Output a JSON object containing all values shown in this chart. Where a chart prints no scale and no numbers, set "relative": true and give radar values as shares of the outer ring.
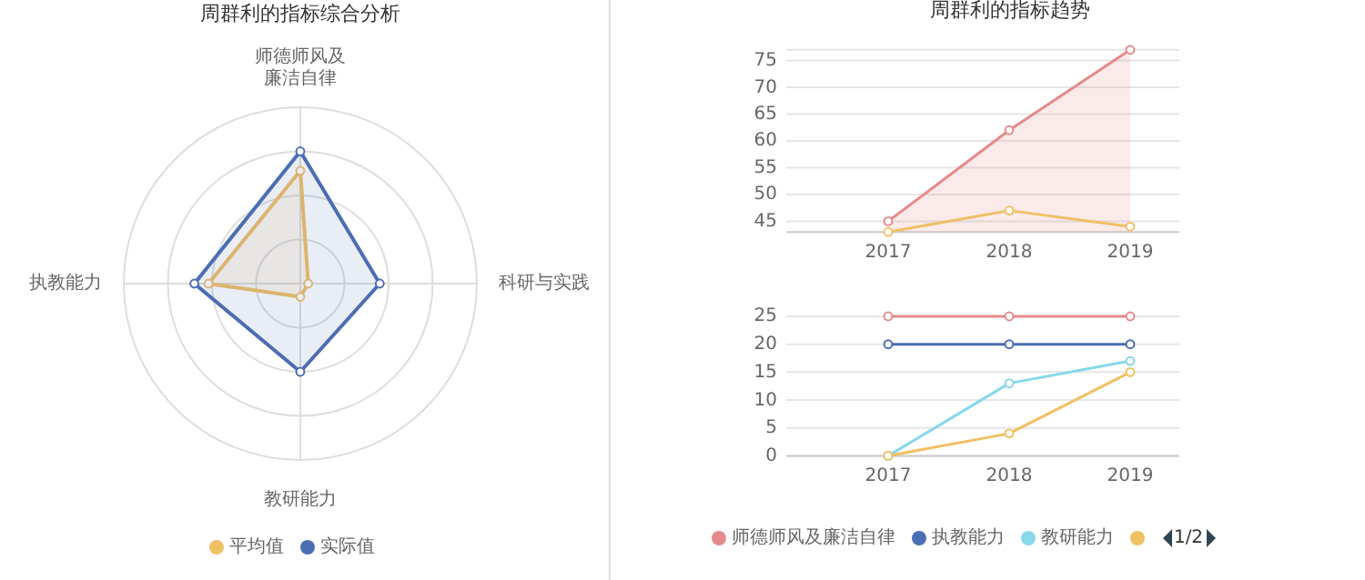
{
  "chart_data": [
    {
      "type": "radar",
      "title": "周群利的指标综合分析",
      "categories": [
        "师德师风及廉洁自律",
        "科研与实践",
        "教研能力",
        "执教能力"
      ],
      "relative": true,
      "grid": true,
      "legend": "bottom",
      "marker": "circle",
      "series": [
        {
          "name": "平均值",
          "color": "#f0c065",
          "values": [
            0.64,
            0.045,
            0.075,
            0.52
          ]
        },
        {
          "name": "实际值",
          "color": "#4b6db3",
          "values": [
            0.75,
            0.45,
            0.5,
            0.6
          ]
        }
      ]
    },
    {
      "type": "line",
      "title": "周群利的指标趋势",
      "categories": [
        "2017",
        "2018",
        "2019"
      ],
      "ylim": [
        43,
        77
      ],
      "yticks": [
        45,
        50,
        55,
        60,
        65,
        70,
        75
      ],
      "grid": "y",
      "marker": "circle",
      "series": [
        {
          "type": "area",
          "color": "#e58a8a",
          "values": [
            45,
            62,
            77
          ]
        },
        {
          "color": "#f0c065",
          "values": [
            43,
            47,
            44
          ]
        }
      ]
    },
    {
      "type": "line",
      "categories": [
        "2017",
        "2018",
        "2019"
      ],
      "ylim": [
        0,
        25
      ],
      "yticks": [
        0,
        5,
        10,
        15,
        20,
        25
      ],
      "grid": "y",
      "marker": "circle",
      "legend": "bottom",
      "annotations": [
        "1/2"
      ],
      "series": [
        {
          "name": "师德师风及廉洁自律",
          "color": "#e58a8a",
          "values": [
            25,
            25,
            25
          ]
        },
        {
          "name": "执教能力",
          "color": "#4b6db3",
          "values": [
            20,
            20,
            20
          ]
        },
        {
          "name": "教研能力",
          "color": "#86d8ea",
          "values": [
            0,
            13,
            17
          ]
        },
        {
          "color": "#f0c065",
          "values": [
            0,
            4,
            15
          ]
        }
      ]
    }
  ]
}
